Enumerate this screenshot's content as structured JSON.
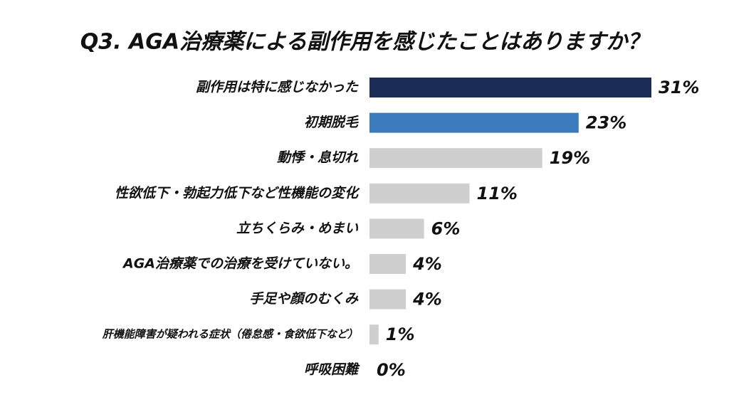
{
  "chart_data": {
    "type": "bar",
    "orientation": "horizontal",
    "title": "Q3. AGA治療薬による副作用を感じたことはありますか？",
    "categories": [
      "副作用は特に感じなかった",
      "初期脱毛",
      "動悸・息切れ",
      "性欲低下・勃起力低下など性機能の変化",
      "立ちくらみ・めまい",
      "AGA治療薬での治療を受けていない。",
      "手足や顔のむくみ",
      "肝機能障害が疑われる症状（倦怠感・食欲低下など）",
      "呼吸困難"
    ],
    "values": [
      31,
      23,
      19,
      11,
      6,
      4,
      4,
      1,
      0
    ],
    "value_labels": [
      "31%",
      "23%",
      "19%",
      "11%",
      "6%",
      "4%",
      "4%",
      "1%",
      "0%"
    ],
    "colors": [
      "#1b2c57",
      "#3b7bbb",
      "#cfcfcf",
      "#cfcfcf",
      "#cfcfcf",
      "#cfcfcf",
      "#cfcfcf",
      "#cfcfcf",
      "#cfcfcf"
    ]
  }
}
